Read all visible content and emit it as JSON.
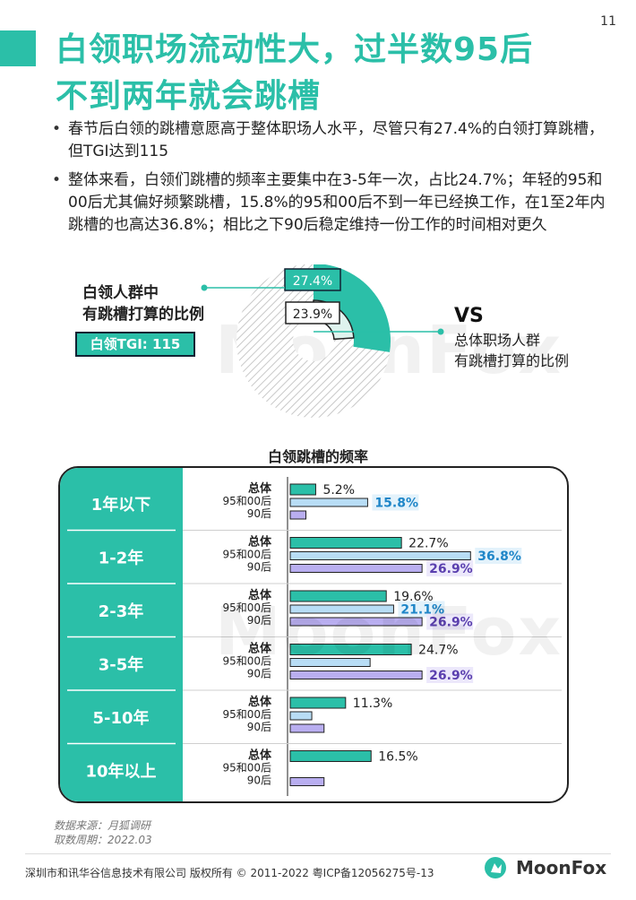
{
  "page_number": "11",
  "title_line1": "白领职场流动性大，过半数95后",
  "title_line2": "不到两年就会跳槽",
  "bullets": [
    "春节后白领的跳槽意愿高于整体职场人水平，尽管只有27.4%的白领打算跳槽，但TGI达到115",
    "整体来看，白领们跳槽的频率主要集中在3-5年一次，占比24.7%；年轻的95和00后尤其偏好频繁跳槽，15.8%的95和00后不到一年已经换工作，在1至2年内跳槽的也高达36.8%；相比之下90后稳定维持一份工作的时间相对更久"
  ],
  "donut": {
    "left_label_line1": "白领人群中",
    "left_label_line2": "有跳槽打算的比例",
    "tgi_label": "白领TGI: 115",
    "vs": "VS",
    "right_label_line1": "总体职场人群",
    "right_label_line2": "有跳槽打算的比例"
  },
  "chart_title": "白领跳槽的频率",
  "watermark": "MoonFox",
  "colors": {
    "teal": "#2bbfa8",
    "blue_bar": "#b8ddf5",
    "purple_bar": "#b9aef0",
    "blue_label": "#1f86c8",
    "purple_label": "#5a3fae"
  },
  "chart_data": [
    {
      "type": "pie",
      "categories": [
        "白领人群中有跳槽打算的比例",
        "总体职场人群有跳槽打算的比例"
      ],
      "values": [
        27.4,
        23.9
      ],
      "labels": [
        "27.4%",
        "23.9%"
      ]
    },
    {
      "type": "bar",
      "title": "白领跳槽的频率",
      "categories": [
        "1年以下",
        "1-2年",
        "2-3年",
        "3-5年",
        "5-10年",
        "10年以上"
      ],
      "series": [
        {
          "name": "总体",
          "values": [
            5.2,
            22.7,
            19.6,
            24.7,
            11.3,
            16.5
          ],
          "labels": [
            "5.2%",
            "22.7%",
            "19.6%",
            "24.7%",
            "11.3%",
            "16.5%"
          ]
        },
        {
          "name": "95和00后",
          "values": [
            15.8,
            36.8,
            21.1,
            16.3,
            4.4,
            0
          ],
          "labels": [
            "15.8%",
            "36.8%",
            "21.1%",
            "",
            "",
            ""
          ]
        },
        {
          "name": "90后",
          "values": [
            3.2,
            26.9,
            26.9,
            26.9,
            6.9,
            6.9
          ],
          "labels": [
            "",
            "26.9%",
            "26.9%",
            "26.9%",
            "",
            ""
          ]
        }
      ]
    }
  ],
  "source_line1": "数据来源：月狐调研",
  "source_line2": "取数周期：2022.03",
  "copyright": "深圳市和讯华谷信息技术有限公司 版权所有 © 2011-2022 粤ICP备12056275号-13",
  "brand": "MoonFox"
}
